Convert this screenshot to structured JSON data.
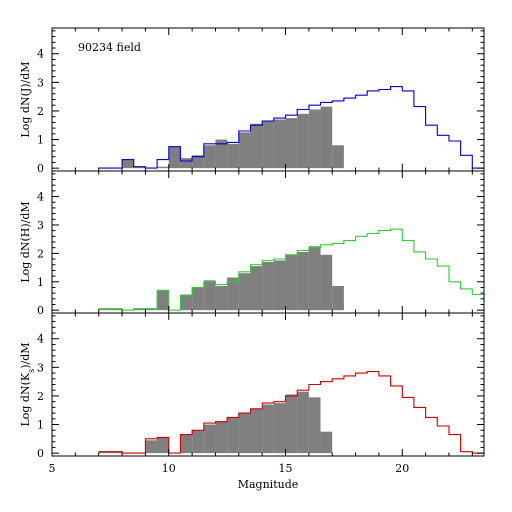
{
  "chart_data": {
    "type": "histogram",
    "x_tick_values": [
      5,
      10,
      15,
      20
    ],
    "y_tick_values": [
      0,
      1,
      2,
      3,
      4
    ],
    "xlim": [
      5,
      23.5
    ],
    "ylim": [
      -0.1,
      4.9
    ],
    "xlabel": "Magnitude",
    "bin_edges": [
      7.0,
      7.5,
      8.0,
      8.5,
      9.0,
      9.5,
      10.0,
      10.5,
      11.0,
      11.5,
      12.0,
      12.5,
      13.0,
      13.5,
      14.0,
      14.5,
      15.0,
      15.5,
      16.0,
      16.5,
      17.0,
      17.5,
      18.0,
      18.5,
      19.0,
      19.5,
      20.0,
      20.5,
      21.0,
      21.5,
      22.0,
      22.5,
      23.0,
      23.5
    ],
    "panels": [
      {
        "ylabel": "Log dN(J)/dM",
        "note": "90234 field",
        "line_color": "#0000cc",
        "line_values": [
          0,
          0,
          0.3,
          0.05,
          0,
          0.3,
          0.75,
          0.25,
          0.4,
          0.85,
          0.85,
          0.9,
          1.3,
          1.5,
          1.65,
          1.75,
          1.85,
          2.05,
          2.2,
          2.3,
          2.35,
          2.45,
          2.55,
          2.7,
          2.75,
          2.85,
          2.7,
          2.15,
          1.5,
          1.15,
          0.95,
          0.45,
          0,
          0
        ],
        "filled_values": [
          0,
          0,
          0.3,
          0.05,
          0,
          0.05,
          0.75,
          0.35,
          0.45,
          0.8,
          1.0,
          0.85,
          1.25,
          1.55,
          1.65,
          1.7,
          1.75,
          1.9,
          2.05,
          2.15,
          0.8,
          0,
          0,
          0,
          0,
          0,
          0,
          0,
          0,
          0,
          0,
          0,
          0,
          0
        ]
      },
      {
        "ylabel": "Log dN(H)/dM",
        "line_color": "#33cc33",
        "line_values": [
          0.05,
          0.05,
          0,
          0.05,
          0.05,
          0.7,
          0,
          0.5,
          0.8,
          1.0,
          0.9,
          1.0,
          1.35,
          1.6,
          1.75,
          1.8,
          1.95,
          2.1,
          2.2,
          2.3,
          2.35,
          2.45,
          2.6,
          2.7,
          2.8,
          2.85,
          2.45,
          2.05,
          1.8,
          1.55,
          1.0,
          0.75,
          0.55,
          0.35
        ],
        "filled_values": [
          0.05,
          0.05,
          0,
          0.05,
          0.05,
          0.7,
          0,
          0.55,
          0.8,
          1.05,
          0.85,
          1.15,
          1.3,
          1.55,
          1.7,
          1.75,
          1.95,
          2.05,
          2.25,
          1.95,
          0.85,
          0,
          0,
          0,
          0,
          0,
          0,
          0,
          0,
          0,
          0,
          0,
          0,
          0
        ]
      },
      {
        "ylabel": "Log dN(Ks)/dM",
        "ylabel_sub": "s",
        "line_color": "#cc0000",
        "line_values": [
          0.05,
          0.05,
          0,
          0,
          0.5,
          0.55,
          0,
          0.65,
          0.8,
          1.05,
          1.1,
          1.25,
          1.4,
          1.55,
          1.75,
          1.8,
          2.0,
          2.2,
          2.4,
          2.5,
          2.6,
          2.7,
          2.8,
          2.85,
          2.7,
          2.35,
          1.95,
          1.6,
          1.25,
          0.95,
          0.65,
          0.05,
          0,
          0
        ],
        "filled_values": [
          0.05,
          0.05,
          0,
          0,
          0.45,
          0.55,
          0,
          0.65,
          0.8,
          1.0,
          1.1,
          1.25,
          1.4,
          1.55,
          1.7,
          1.75,
          2.05,
          2.15,
          1.95,
          0.75,
          0,
          0,
          0,
          0,
          0,
          0,
          0,
          0,
          0,
          0,
          0,
          0,
          0,
          0
        ]
      }
    ]
  }
}
